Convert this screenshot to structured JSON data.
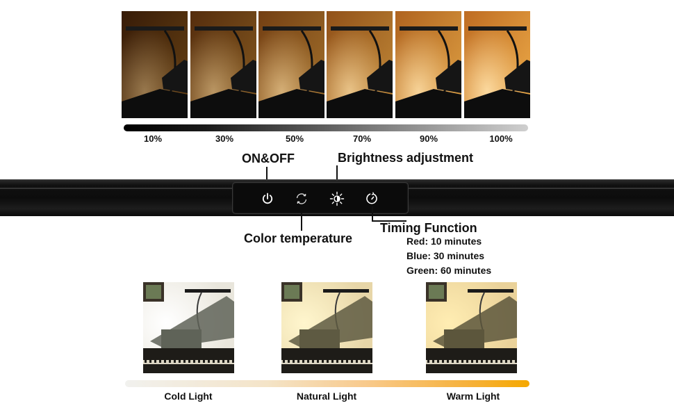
{
  "brightness": {
    "levels": [
      "10%",
      "30%",
      "50%",
      "70%",
      "90%",
      "100%"
    ],
    "level_values": [
      0.1,
      0.3,
      0.5,
      0.7,
      0.9,
      1.0
    ]
  },
  "controls": {
    "on_off": "ON&OFF",
    "brightness_adjustment": "Brightness adjustment",
    "color_temperature": "Color temperature",
    "timing_function": "Timing Function",
    "timing_details": [
      "Red: 10 minutes",
      "Blue: 30 minutes",
      "Green: 60 minutes"
    ],
    "icons": [
      "power-icon",
      "color-temperature-icon",
      "sun-icon",
      "timer-icon"
    ]
  },
  "color_temperature": {
    "labels": [
      "Cold Light",
      "Natural Light",
      "Warm Light"
    ],
    "colors": [
      "#f1f1ee",
      "#f8c98a",
      "#f5a800"
    ]
  }
}
